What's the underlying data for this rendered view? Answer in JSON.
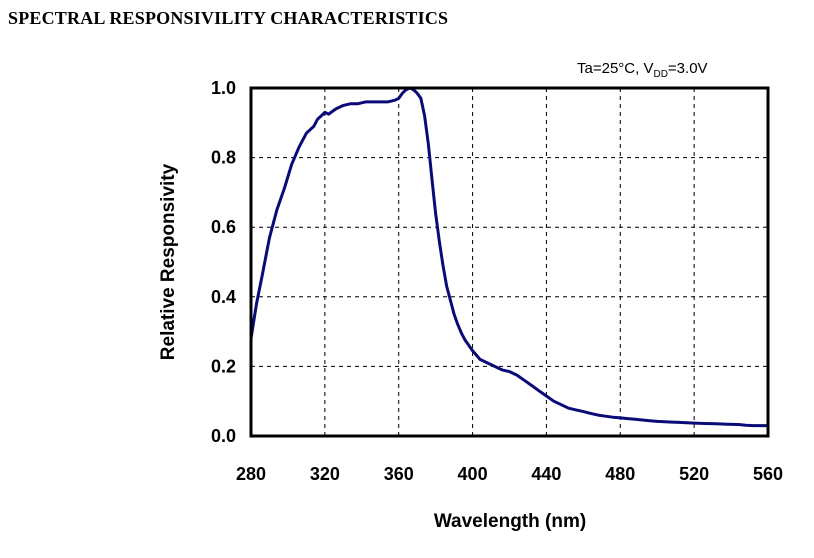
{
  "page": {
    "title": "SPECTRAL RESPONSIVILITY CHARACTERISTICS"
  },
  "conditions": {
    "prefix": "Ta=25°C, V",
    "subscript": "DD",
    "suffix": "=3.0V"
  },
  "colors": {
    "series": "#0a0a78",
    "frame": "#000000"
  },
  "chart_data": {
    "type": "line",
    "xlabel": "Wavelength (nm)",
    "ylabel": "Relative Responsivity",
    "xlim": [
      280,
      560
    ],
    "ylim": [
      0,
      1.0
    ],
    "x_ticks": [
      280,
      320,
      360,
      400,
      440,
      480,
      520,
      560
    ],
    "y_ticks": [
      "0.0",
      "0.2",
      "0.4",
      "0.6",
      "0.8",
      "1.0"
    ],
    "y_tick_values": [
      0,
      0.2,
      0.4,
      0.6,
      0.8,
      1.0
    ],
    "grid": true,
    "legend": "none",
    "series": [
      {
        "x": [
          280,
          283,
          286,
          290,
          294,
          298,
          302,
          306,
          310,
          314,
          316,
          320,
          322,
          326,
          330,
          334,
          338,
          342,
          346,
          350,
          354,
          358,
          360,
          362,
          364,
          366,
          368,
          370,
          372,
          374,
          376,
          378,
          380,
          382,
          384,
          386,
          388,
          390,
          392,
          394,
          396,
          400,
          404,
          408,
          412,
          416,
          420,
          424,
          428,
          432,
          436,
          440,
          444,
          448,
          452,
          456,
          460,
          464,
          468,
          472,
          476,
          480,
          484,
          488,
          492,
          496,
          500,
          504,
          508,
          512,
          516,
          520,
          526,
          532,
          538,
          544,
          548,
          552,
          556,
          560
        ],
        "y": [
          0.28,
          0.38,
          0.46,
          0.57,
          0.65,
          0.71,
          0.78,
          0.83,
          0.87,
          0.89,
          0.91,
          0.93,
          0.925,
          0.94,
          0.95,
          0.955,
          0.955,
          0.96,
          0.96,
          0.96,
          0.96,
          0.965,
          0.97,
          0.985,
          0.995,
          1.0,
          0.995,
          0.985,
          0.97,
          0.92,
          0.84,
          0.74,
          0.64,
          0.56,
          0.49,
          0.43,
          0.39,
          0.35,
          0.32,
          0.295,
          0.275,
          0.245,
          0.22,
          0.21,
          0.2,
          0.19,
          0.185,
          0.175,
          0.16,
          0.145,
          0.13,
          0.115,
          0.1,
          0.09,
          0.08,
          0.075,
          0.07,
          0.065,
          0.06,
          0.057,
          0.054,
          0.052,
          0.05,
          0.048,
          0.046,
          0.044,
          0.042,
          0.041,
          0.04,
          0.039,
          0.038,
          0.037,
          0.036,
          0.035,
          0.034,
          0.033,
          0.031,
          0.03,
          0.03,
          0.03
        ]
      }
    ]
  }
}
